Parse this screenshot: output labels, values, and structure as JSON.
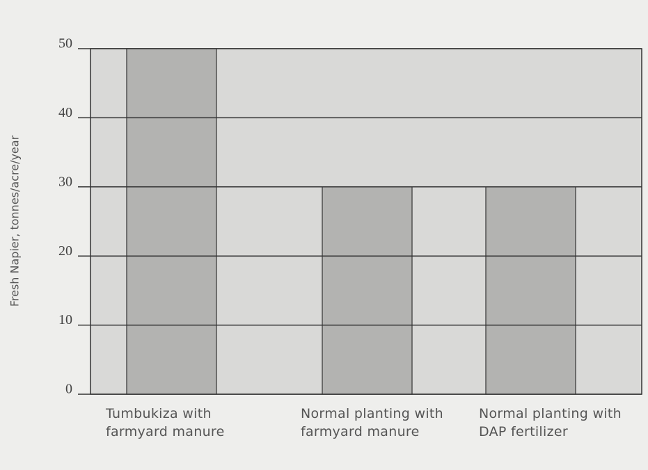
{
  "chart_data": {
    "type": "bar",
    "y_label": "Fresh Napier, tonnes/acre/year",
    "categories": [
      "Tumbukiza with farmyard manure",
      "Normal planting with farmyard manure",
      "Normal planting with DAP fertilizer"
    ],
    "values": [
      50,
      30,
      30
    ],
    "color": "#b3b3b1",
    "ylim": [
      0,
      50
    ],
    "yticks": [
      0,
      10,
      20,
      30,
      40,
      50
    ],
    "grid": true
  }
}
